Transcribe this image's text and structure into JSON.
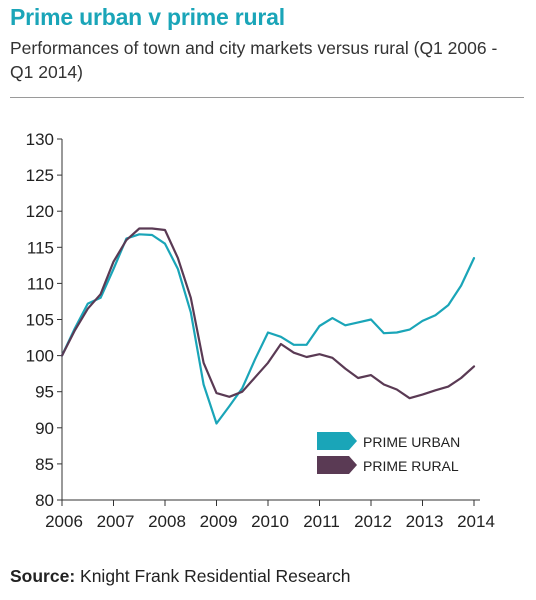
{
  "header": {
    "title": "Prime urban v prime rural",
    "subtitle": "Performances of town and city markets versus rural (Q1 2006 - Q1 2014)"
  },
  "footer": {
    "source_label": "Source:",
    "source_text": "Knight Frank Residential Research"
  },
  "chart_data": {
    "type": "line",
    "title": "",
    "xlabel": "",
    "ylabel": "",
    "ylim": [
      80,
      130
    ],
    "yticks": [
      80,
      85,
      90,
      95,
      100,
      105,
      110,
      115,
      120,
      125,
      130
    ],
    "xlim": [
      2006,
      2014
    ],
    "xticks": [
      "2006",
      "2007",
      "2008",
      "2009",
      "2010",
      "2011",
      "2012",
      "2013",
      "2014"
    ],
    "grid": false,
    "legend_position": "bottom-right",
    "x": [
      2006.0,
      2006.25,
      2006.5,
      2006.75,
      2007.0,
      2007.25,
      2007.5,
      2007.75,
      2008.0,
      2008.25,
      2008.5,
      2008.75,
      2009.0,
      2009.25,
      2009.5,
      2009.75,
      2010.0,
      2010.25,
      2010.5,
      2010.75,
      2011.0,
      2011.25,
      2011.5,
      2011.75,
      2012.0,
      2012.25,
      2012.5,
      2012.75,
      2013.0,
      2013.25,
      2013.5,
      2013.75,
      2014.0
    ],
    "series": [
      {
        "name": "PRIME URBAN",
        "color": "#1aa5b8",
        "values": [
          100.0,
          103.8,
          107.2,
          108.0,
          112.0,
          116.2,
          116.8,
          116.7,
          115.5,
          112.0,
          106.0,
          96.0,
          90.6,
          93.0,
          95.5,
          99.5,
          103.2,
          102.6,
          101.5,
          101.5,
          104.1,
          105.2,
          104.2,
          104.6,
          105.0,
          103.1,
          103.2,
          103.6,
          104.8,
          105.6,
          107.0,
          109.7,
          113.5
        ]
      },
      {
        "name": "PRIME RURAL",
        "color": "#5a3a54",
        "values": [
          100.0,
          103.5,
          106.5,
          108.5,
          113.0,
          116.0,
          117.6,
          117.6,
          117.4,
          113.5,
          108.0,
          99.0,
          94.8,
          94.3,
          95.0,
          97.0,
          99.0,
          101.6,
          100.4,
          99.8,
          100.2,
          99.7,
          98.2,
          96.9,
          97.3,
          96.0,
          95.3,
          94.1,
          94.6,
          95.2,
          95.7,
          96.9,
          98.5
        ]
      }
    ]
  }
}
